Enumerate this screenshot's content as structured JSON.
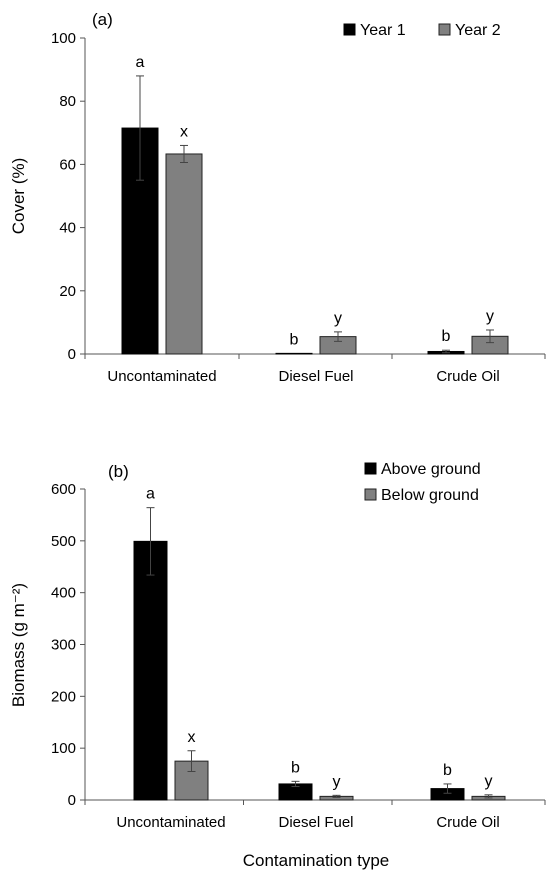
{
  "figure": {
    "xlabel": "Contamination type"
  },
  "chart_data": [
    {
      "type": "bar",
      "panel_label": "(a)",
      "ylabel": "Cover (%)",
      "xlabel": "",
      "ylim": [
        0,
        100
      ],
      "yticks": [
        0,
        20,
        40,
        60,
        80,
        100
      ],
      "categories": [
        "Uncontaminated",
        "Diesel Fuel",
        "Crude Oil"
      ],
      "legend_position": "top-right",
      "grid": false,
      "series": [
        {
          "name": "Year 1",
          "color": "#000000",
          "values": [
            71.5,
            0.2,
            0.8
          ],
          "errors": [
            16.5,
            0,
            0.4
          ],
          "letters": [
            "a",
            "b",
            "b"
          ]
        },
        {
          "name": "Year 2",
          "color": "#808080",
          "values": [
            63.3,
            5.5,
            5.6
          ],
          "errors": [
            2.7,
            1.5,
            2.0
          ],
          "letters": [
            "x",
            "y",
            "y"
          ]
        }
      ]
    },
    {
      "type": "bar",
      "panel_label": "(b)",
      "ylabel": "Biomass (g m⁻²)",
      "xlabel": "Contamination type",
      "ylim": [
        0,
        600
      ],
      "yticks": [
        0,
        100,
        200,
        300,
        400,
        500,
        600
      ],
      "categories": [
        "Uncontaminated",
        "Diesel Fuel",
        "Crude Oil"
      ],
      "legend_position": "top-right",
      "grid": false,
      "series": [
        {
          "name": "Above ground",
          "color": "#000000",
          "values": [
            499,
            31,
            22
          ],
          "errors": [
            65,
            5,
            9
          ],
          "letters": [
            "a",
            "b",
            "b"
          ]
        },
        {
          "name": "Below ground",
          "color": "#808080",
          "values": [
            75,
            7,
            7
          ],
          "errors": [
            20,
            2,
            3
          ],
          "letters": [
            "x",
            "y",
            "y"
          ]
        }
      ]
    }
  ]
}
